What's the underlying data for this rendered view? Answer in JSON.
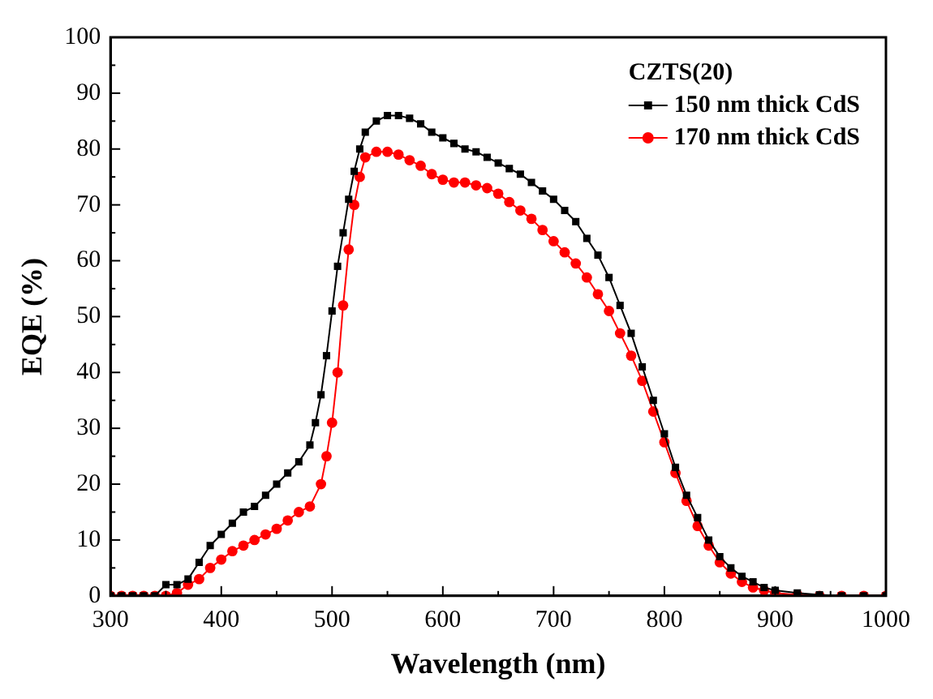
{
  "chart_data": {
    "type": "line",
    "xlabel": "Wavelength (nm)",
    "ylabel": "EQE (%)",
    "legend_title": "CZTS(20)",
    "legend": "top right",
    "grid": false,
    "line_style": "solid",
    "xlim": [
      300,
      1000
    ],
    "xticks": [
      300,
      400,
      500,
      600,
      700,
      800,
      900,
      1000
    ],
    "ylim": [
      0,
      100
    ],
    "yticks": [
      0,
      10,
      20,
      30,
      40,
      50,
      60,
      70,
      80,
      90,
      100
    ],
    "series": [
      {
        "name": "150 nm thick CdS",
        "color": "#000000",
        "marker": "square",
        "x": [
          300,
          310,
          320,
          330,
          340,
          350,
          360,
          370,
          380,
          390,
          400,
          410,
          420,
          430,
          440,
          450,
          460,
          470,
          480,
          485,
          490,
          495,
          500,
          505,
          510,
          515,
          520,
          525,
          530,
          540,
          550,
          560,
          570,
          580,
          590,
          600,
          610,
          620,
          630,
          640,
          650,
          660,
          670,
          680,
          690,
          700,
          710,
          720,
          730,
          740,
          750,
          760,
          770,
          780,
          790,
          800,
          810,
          820,
          830,
          840,
          850,
          860,
          870,
          880,
          890,
          900,
          920,
          940,
          960,
          980,
          1000
        ],
        "values": [
          0,
          0,
          0,
          0,
          0,
          2,
          2,
          3,
          6,
          9,
          11,
          13,
          15,
          16,
          18,
          20,
          22,
          24,
          27,
          31,
          36,
          43,
          51,
          59,
          65,
          71,
          76,
          80,
          83,
          85,
          86,
          86,
          85.5,
          84.5,
          83,
          82,
          81,
          80,
          79.5,
          78.5,
          77.5,
          76.5,
          75.5,
          74,
          72.5,
          71,
          69,
          67,
          64,
          61,
          57,
          52,
          47,
          41,
          35,
          29,
          23,
          18,
          14,
          10,
          7,
          5,
          3.5,
          2.5,
          1.5,
          1,
          0.5,
          0.2,
          0,
          0,
          0
        ]
      },
      {
        "name": "170 nm thick CdS",
        "color": "#ff0000",
        "marker": "circle",
        "x": [
          300,
          310,
          320,
          330,
          340,
          350,
          360,
          370,
          380,
          390,
          400,
          410,
          420,
          430,
          440,
          450,
          460,
          470,
          480,
          490,
          495,
          500,
          505,
          510,
          515,
          520,
          525,
          530,
          540,
          550,
          560,
          570,
          580,
          590,
          600,
          610,
          620,
          630,
          640,
          650,
          660,
          670,
          680,
          690,
          700,
          710,
          720,
          730,
          740,
          750,
          760,
          770,
          780,
          790,
          800,
          810,
          820,
          830,
          840,
          850,
          860,
          870,
          880,
          890,
          900,
          920,
          940,
          960,
          980,
          1000
        ],
        "values": [
          0,
          0,
          0,
          0,
          0,
          0,
          0.5,
          2,
          3,
          5,
          6.5,
          8,
          9,
          10,
          11,
          12,
          13.5,
          15,
          16,
          20,
          25,
          31,
          40,
          52,
          62,
          70,
          75,
          78.5,
          79.5,
          79.5,
          79,
          78,
          77,
          75.5,
          74.5,
          74,
          74,
          73.5,
          73,
          72,
          70.5,
          69,
          67.5,
          65.5,
          63.5,
          61.5,
          59.5,
          57,
          54,
          51,
          47,
          43,
          38.5,
          33,
          27.5,
          22,
          17,
          12.5,
          9,
          6,
          4,
          2.5,
          1.5,
          1,
          0.5,
          0.2,
          0,
          0,
          0,
          0
        ]
      }
    ]
  }
}
